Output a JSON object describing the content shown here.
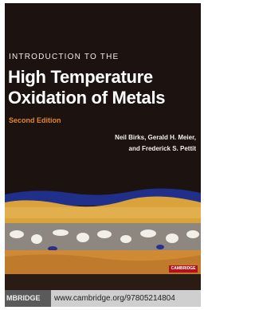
{
  "cover": {
    "kicker": "INTRODUCTION TO THE",
    "title_lines": [
      "High Temperature",
      "Oxidation of Metals"
    ],
    "edition": "Second Edition",
    "author_lines": [
      "Neil Birks, Gerald H. Meier,",
      "and Frederick S. Pettit"
    ],
    "logo": "CAMBRIDGE",
    "footer": {
      "publisher": "MBRIDGE",
      "url": "www.cambridge.org/97805214804"
    }
  }
}
